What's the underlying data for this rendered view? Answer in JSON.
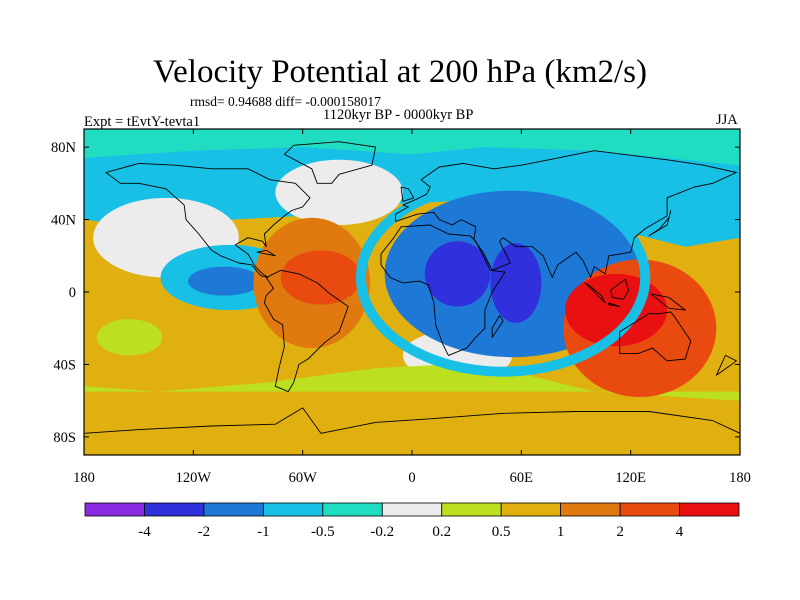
{
  "chart_data": {
    "type": "contour-map",
    "title": "Velocity Potential at 200 hPa (km2/s)",
    "stats_text": "rmsd= 0.94688 diff= -0.000158017",
    "period_text": "1120kyr BP - 0000kyr BP",
    "experiment_text": "Expt = tEvtY-tevta1",
    "season": "JJA",
    "x_axis": {
      "min": -180,
      "max": 180,
      "ticks": [
        -180,
        -120,
        -60,
        0,
        60,
        120,
        180
      ],
      "tick_labels": [
        "180",
        "120W",
        "60W",
        "0",
        "60E",
        "120E",
        "180"
      ]
    },
    "y_axis": {
      "min": -90,
      "max": 90,
      "ticks": [
        80,
        40,
        0,
        -40,
        -80
      ],
      "tick_labels": [
        "80N",
        "40N",
        "0",
        "40S",
        "80S"
      ]
    },
    "colorbar": {
      "boundaries": [
        "-4",
        "-2",
        "-1",
        "-0.5",
        "-0.2",
        "0.2",
        "0.5",
        "1",
        "2",
        "4"
      ],
      "colors": [
        "#8a2be2",
        "#3030dd",
        "#1e78d6",
        "#18c0e6",
        "#20dcc0",
        "#ececec",
        "#bce020",
        "#e0b010",
        "#e07a10",
        "#e84a10",
        "#e81010"
      ]
    },
    "features": [
      {
        "name": "asia-africa-negative",
        "level": "-1",
        "lon": 55,
        "lat": 10,
        "rx": 70,
        "ry": 46
      },
      {
        "name": "africa-min-1",
        "level": "-2",
        "lon": 25,
        "lat": 10,
        "rx": 18,
        "ry": 18
      },
      {
        "name": "africa-min-2",
        "level": "-2",
        "lon": 57,
        "lat": 5,
        "rx": 14,
        "ry": 22
      },
      {
        "name": "pacific-negative",
        "level": "-0.5",
        "lon": -100,
        "lat": 8,
        "rx": 38,
        "ry": 18
      },
      {
        "name": "pacific-min",
        "level": "-1",
        "lon": -103,
        "lat": 6,
        "rx": 20,
        "ry": 8
      },
      {
        "name": "south-america-positive",
        "level": "1",
        "lon": -55,
        "lat": 5,
        "rx": 32,
        "ry": 36
      },
      {
        "name": "south-america-max",
        "level": "2",
        "lon": -50,
        "lat": 8,
        "rx": 22,
        "ry": 15
      },
      {
        "name": "maritime-continent-positive",
        "level": "2",
        "lon": 125,
        "lat": -20,
        "rx": 42,
        "ry": 38
      },
      {
        "name": "maritime-continent-max",
        "level": "4",
        "lon": 112,
        "lat": -10,
        "rx": 28,
        "ry": 20
      }
    ]
  }
}
